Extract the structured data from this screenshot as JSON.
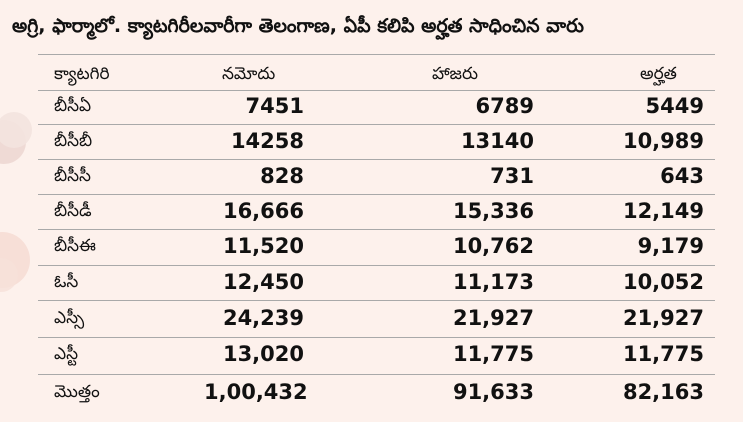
{
  "title": "అగ్రి, ఫార్మాలో. క్యాటగిరీలవారీగా తెలంగాణ, ఏపీ కలిపి అర్హత సాధించిన వారు",
  "columns": {
    "category": "క్యాటగిరి",
    "registered": "నమోదు",
    "appeared": "హాజరు",
    "qualified": "అర్హత"
  },
  "rows": [
    {
      "category": "బీసీఏ",
      "registered": "7451",
      "appeared": "6789",
      "qualified": "5449"
    },
    {
      "category": "బీసీబీ",
      "registered": "14258",
      "appeared": "13140",
      "qualified": "10,989"
    },
    {
      "category": "బీసీసీ",
      "registered": "828",
      "appeared": "731",
      "qualified": "643"
    },
    {
      "category": "బీసీడీ",
      "registered": "16,666",
      "appeared": "15,336",
      "qualified": "12,149"
    },
    {
      "category": "బీసీఈ",
      "registered": "11,520",
      "appeared": "10,762",
      "qualified": "9,179"
    },
    {
      "category": "ఓసీ",
      "registered": "12,450",
      "appeared": "11,173",
      "qualified": "10,052"
    },
    {
      "category": "ఎస్సీ",
      "registered": "24,239",
      "appeared": "21,927",
      "qualified": "21,927"
    },
    {
      "category": "ఎస్టీ",
      "registered": "13,020",
      "appeared": "11,775",
      "qualified": "11,775"
    },
    {
      "category": "మొత్తం",
      "registered": "1,00,432",
      "appeared": "91,633",
      "qualified": "82,163"
    }
  ],
  "colors": {
    "background": "#fdf1ec",
    "text": "#111111",
    "rule": "#a9a9a9"
  }
}
